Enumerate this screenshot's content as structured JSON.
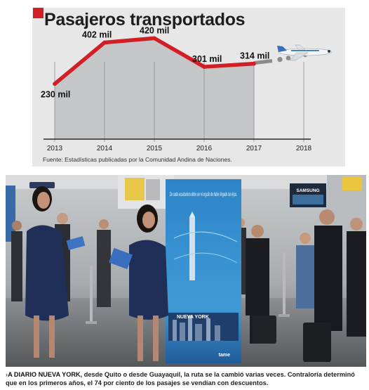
{
  "chart_data": {
    "type": "line",
    "title": "Pasajeros transportados",
    "categories": [
      "2013",
      "2014",
      "2015",
      "2016",
      "2017",
      "2018"
    ],
    "series": [
      {
        "values": [
          230,
          402,
          420,
          301,
          314,
          null
        ]
      }
    ],
    "data_labels": [
      "230 mil",
      "402 mil",
      "420 mil",
      "301 mil",
      "314 mil"
    ],
    "projection": {
      "from": "2017",
      "to": "2018",
      "style": "dotted"
    },
    "ylim": [
      0,
      500
    ],
    "xlabel": "",
    "ylabel": "",
    "source": "Fuente: Estadísticas publicadas por la Comunidad Andina de Naciones.",
    "colors": {
      "line": "#d21f26",
      "area": "#c5c6c8",
      "projection": "#8a8b8d"
    }
  },
  "photo": {
    "banner_text": "De cada ecuatoriano debe ser el orgullo de haber llegado tan lejos.",
    "banner_subtitle": "NUEVA YORK",
    "banner_brand": "tame",
    "monitor_brand": "SAMSUNG"
  },
  "caption": {
    "lead": "A DIARIO NUEVA YORK,",
    "body": " desde Quito o desde Guayaquil, la ruta se la cambió varias veces. Contraloría determinó que en los primeros años, el 74 por ciento de los pasajes se vendían con descuentos."
  }
}
